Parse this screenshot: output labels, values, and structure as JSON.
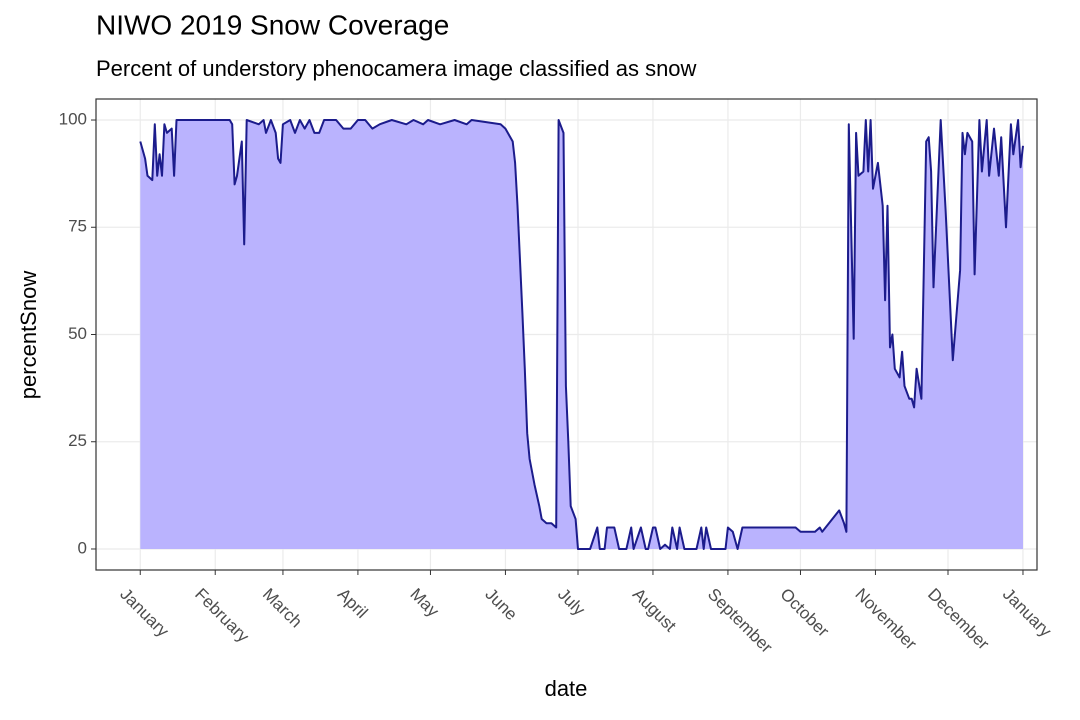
{
  "chart_data": {
    "type": "area",
    "title": "NIWO 2019 Snow Coverage",
    "subtitle": "Percent of understory phenocamera image classified as snow",
    "x_label": "date",
    "y_label": "percentSnow",
    "x": [
      0,
      2,
      3,
      5,
      6,
      7,
      8,
      9,
      10,
      11,
      13,
      14,
      15,
      37,
      38,
      39,
      40,
      42,
      43,
      44,
      49,
      51,
      52,
      54,
      56,
      57,
      58,
      59,
      62,
      64,
      66,
      68,
      70,
      72,
      74,
      76,
      81,
      84,
      87,
      90,
      93,
      96,
      99,
      104,
      110,
      113,
      117,
      119,
      124,
      130,
      135,
      137,
      149,
      151,
      154,
      155,
      156,
      158,
      159,
      160,
      161,
      163,
      165,
      166,
      168,
      170,
      172,
      173,
      175,
      176,
      177,
      178,
      180,
      181,
      186,
      189,
      190,
      192,
      193,
      196,
      198,
      201,
      203,
      204,
      207,
      209,
      210,
      212,
      213,
      215,
      217,
      219,
      220,
      222,
      223,
      225,
      230,
      232,
      233,
      234,
      236,
      242,
      243,
      245,
      247,
      249,
      251,
      253,
      265,
      271,
      273,
      279,
      281,
      282,
      289,
      291,
      292,
      293,
      295,
      296,
      297,
      299,
      300,
      301,
      302,
      303,
      305,
      306,
      307,
      308,
      309,
      310,
      311,
      312,
      314,
      315,
      316,
      318,
      319,
      320,
      321,
      323,
      325,
      326,
      327,
      328,
      331,
      333,
      336,
      339,
      340,
      341,
      342,
      344,
      345,
      347,
      348,
      350,
      351,
      353,
      355,
      356,
      358,
      360,
      361,
      363,
      364,
      365
    ],
    "values": [
      95,
      91,
      87,
      86,
      99,
      87,
      92,
      87,
      99,
      97,
      98,
      87,
      100,
      100,
      99,
      85,
      87,
      95,
      71,
      100,
      99,
      100,
      97,
      100,
      97,
      91,
      90,
      99,
      100,
      97,
      100,
      98,
      100,
      97,
      97,
      100,
      100,
      98,
      98,
      100,
      100,
      98,
      99,
      100,
      99,
      100,
      99,
      100,
      99,
      100,
      99,
      100,
      99,
      98,
      95,
      90,
      80,
      55,
      42,
      27,
      21,
      15,
      10,
      7,
      6,
      6,
      5,
      100,
      97,
      38,
      25,
      10,
      7,
      0,
      0,
      5,
      0,
      0,
      5,
      5,
      0,
      0,
      5,
      0,
      5,
      0,
      0,
      5,
      5,
      0,
      1,
      0,
      5,
      0,
      5,
      0,
      0,
      5,
      0,
      5,
      0,
      0,
      5,
      4,
      0,
      5,
      5,
      5,
      5,
      5,
      4,
      4,
      5,
      4,
      9,
      6,
      4,
      99,
      49,
      97,
      87,
      88,
      100,
      88,
      100,
      84,
      90,
      85,
      80,
      58,
      80,
      47,
      50,
      42,
      40,
      46,
      38,
      35,
      35,
      33,
      42,
      35,
      95,
      96,
      88,
      61,
      100,
      79,
      44,
      65,
      97,
      92,
      97,
      95,
      64,
      100,
      88,
      100,
      87,
      98,
      87,
      96,
      75,
      99,
      92,
      100,
      89,
      94
    ],
    "color": "#bab3fe",
    "line_color": "#1c1c8c",
    "xlim": [
      -18.3,
      370.8
    ],
    "xticks": [
      {
        "value": 0,
        "label": "January"
      },
      {
        "value": 31,
        "label": "February"
      },
      {
        "value": 59,
        "label": "March"
      },
      {
        "value": 90,
        "label": "April"
      },
      {
        "value": 120,
        "label": "May"
      },
      {
        "value": 151,
        "label": "June"
      },
      {
        "value": 181,
        "label": "July"
      },
      {
        "value": 212,
        "label": "August"
      },
      {
        "value": 243,
        "label": "September"
      },
      {
        "value": 273,
        "label": "October"
      },
      {
        "value": 304,
        "label": "November"
      },
      {
        "value": 334,
        "label": "December"
      },
      {
        "value": 365,
        "label": "January"
      }
    ],
    "ylim": [
      -4.9,
      104.9
    ],
    "yticks": [
      0,
      25,
      50,
      75,
      100
    ],
    "grid": true
  }
}
